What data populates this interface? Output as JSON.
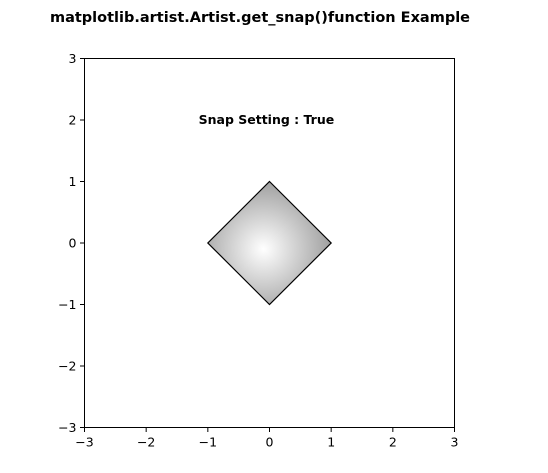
{
  "figure": {
    "title": "matplotlib.artist.Artist.get_snap()function Example"
  },
  "chart_data": {
    "type": "polygon",
    "title": "matplotlib.artist.Artist.get_snap()function Example",
    "xlabel": "",
    "ylabel": "",
    "xlim": [
      -3,
      3
    ],
    "ylim": [
      -3,
      3
    ],
    "xticks": [
      -3,
      -2,
      -1,
      0,
      1,
      2,
      3
    ],
    "yticks": [
      -3,
      -2,
      -1,
      0,
      1,
      2,
      3
    ],
    "xtick_labels": [
      "−3",
      "−2",
      "−1",
      "0",
      "1",
      "2",
      "3"
    ],
    "ytick_labels": [
      "−3",
      "−2",
      "−1",
      "0",
      "1",
      "2",
      "3"
    ],
    "grid": false,
    "polygon": {
      "vertices": [
        [
          0,
          1
        ],
        [
          1,
          0
        ],
        [
          0,
          -1
        ],
        [
          -1,
          0
        ]
      ],
      "fill": "radial gray gradient",
      "gradient_center": [
        0,
        0
      ],
      "gradient_center_color": "#ffffff",
      "gradient_edge_color": "#8a8a8a",
      "edge_color": "#000000"
    },
    "annotation": {
      "text": "Snap Setting : True",
      "x": -0.05,
      "y": 2.0
    }
  }
}
